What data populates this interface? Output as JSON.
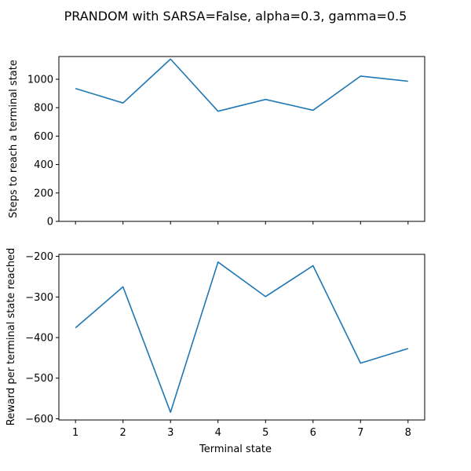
{
  "chart_data": [
    {
      "type": "line",
      "title": "PRANDOM with SARSA=False, alpha=0.3, gamma=0.5",
      "xlabel": "",
      "ylabel": "Steps to reach a terminal state",
      "x": [
        1,
        2,
        3,
        4,
        5,
        6,
        7,
        8
      ],
      "series": [
        {
          "values": [
            935,
            833,
            1142,
            775,
            858,
            782,
            1022,
            986
          ],
          "color": "#1f77b4"
        }
      ],
      "ylim": [
        0,
        1160
      ],
      "yticks": [
        0,
        200,
        400,
        600,
        800,
        1000
      ],
      "xticks": [
        1,
        2,
        3,
        4,
        5,
        6,
        7,
        8
      ],
      "xticklabels_visible": false,
      "grid": false
    },
    {
      "type": "line",
      "xlabel": "Terminal state",
      "ylabel": "Reward per terminal state reached",
      "x": [
        1,
        2,
        3,
        4,
        5,
        6,
        7,
        8
      ],
      "series": [
        {
          "values": [
            -376,
            -275,
            -584,
            -214,
            -299,
            -223,
            -463,
            -427
          ],
          "color": "#1f77b4"
        }
      ],
      "ylim": [
        -603,
        -195
      ],
      "yticks": [
        -600,
        -500,
        -400,
        -300,
        -200
      ],
      "ytick_labels": [
        "−600",
        "−500",
        "−400",
        "−300",
        "−200"
      ],
      "xticks": [
        1,
        2,
        3,
        4,
        5,
        6,
        7,
        8
      ],
      "xticklabels_visible": true,
      "grid": false
    }
  ]
}
